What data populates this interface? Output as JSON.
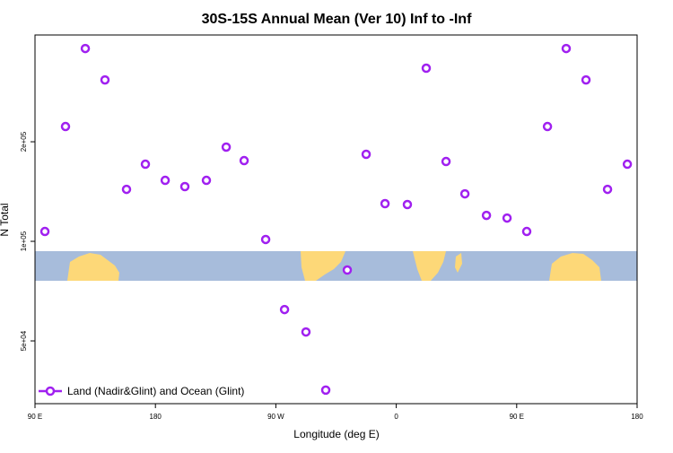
{
  "chart_data": {
    "type": "scatter",
    "title": "30S-15S Annual Mean (Ver 10)   Inf to -Inf",
    "x_label": "Longitude (deg E)",
    "y_label": "N Total",
    "xlim": [
      90,
      540
    ],
    "xticks": [
      {
        "value": 90,
        "label": "90 E"
      },
      180,
      {
        "value": 270,
        "label": "90 W"
      },
      {
        "value": 360,
        "label": "0"
      },
      {
        "value": 450,
        "label": "90 E"
      },
      {
        "value": 540,
        "label": "180"
      }
    ],
    "ylim": [
      32300,
      420600
    ],
    "yticks": [
      {
        "value": 50000,
        "label": "5e+04"
      },
      {
        "value": 100000,
        "label": "1e+05"
      },
      {
        "value": 200000,
        "label": "2e+05"
      }
    ],
    "y_log": true,
    "legend_position": "bottom-left",
    "series": [
      {
        "name": "Land (Nadir&Glint) and Ocean (Glint)",
        "color": "#a020f0",
        "x": [
          97.4,
          112.8,
          127.6,
          142.3,
          158.4,
          172.5,
          187.3,
          202,
          218.1,
          232.9,
          246.3,
          262.4,
          276.5,
          292.5,
          307.3,
          323.4,
          337.5,
          351.6,
          368.3,
          382.4,
          397.2,
          411.3,
          427.4,
          442.8,
          457.5,
          473,
          487,
          501.8,
          517.9,
          532.7
        ],
        "values": [
          107100,
          222400,
          382800,
          307600,
          143600,
          171100,
          152900,
          146400,
          152900,
          192700,
          175400,
          101300,
          62200,
          53200,
          35500,
          81900,
          183300,
          130000,
          129200,
          333800,
          174300,
          139200,
          119800,
          117600,
          107100,
          222400,
          382800,
          307600,
          143600,
          171100
        ]
      }
    ]
  }
}
